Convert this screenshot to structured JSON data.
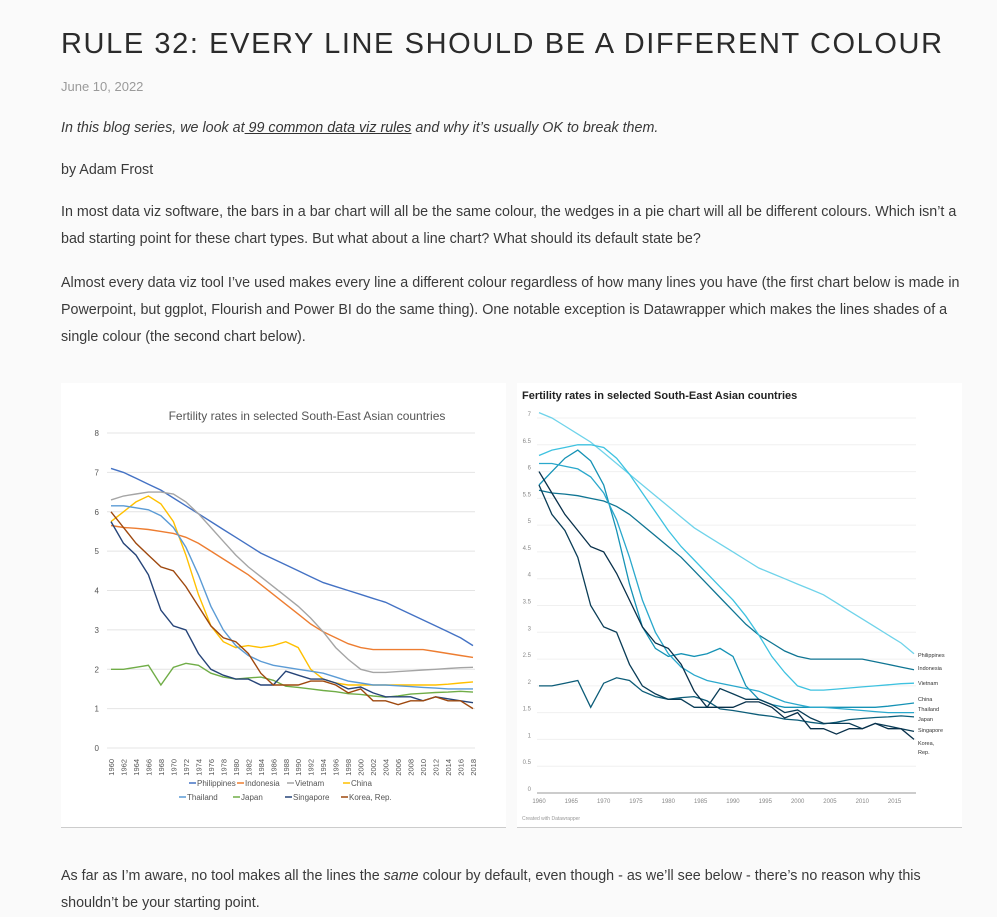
{
  "post": {
    "title": "RULE 32: EVERY LINE SHOULD BE A DIFFERENT COLOUR",
    "date": "June 10, 2022",
    "intro_before": "In this blog series, we look at",
    "intro_link": " 99 common data viz rules",
    "intro_after": " and why it’s usually OK to break them.",
    "byline": "by Adam Frost",
    "paragraph1": "In most data viz software, the bars in a bar chart will all be the same colour, the wedges in a pie chart will all be different colours. Which isn’t a bad starting point for these chart types. But what about a line chart? What should its default state be?",
    "paragraph2": "Almost every data viz tool I’ve used makes every line a different colour regardless of how many lines you have (the first chart below is made in Powerpoint, but ggplot, Flourish and Power BI do the same thing). One notable exception is Datawrapper which makes the lines shades of a single colour (the second chart below).",
    "paragraph3_before": "As far as I’m aware, no tool makes all the lines the ",
    "paragraph3_em": "same",
    "paragraph3_after": " colour by default, even though - as we’ll see below - there’s no reason why this shouldn’t be your starting point."
  },
  "chart_data": [
    {
      "type": "line",
      "title": "Fertility rates in selected South-East Asian countries",
      "xlabel": "",
      "ylabel": "",
      "ylim": [
        0,
        8
      ],
      "yticks": [
        0,
        1,
        2,
        3,
        4,
        5,
        6,
        7,
        8
      ],
      "x": [
        1960,
        1962,
        1964,
        1966,
        1968,
        1970,
        1972,
        1974,
        1976,
        1978,
        1980,
        1982,
        1984,
        1986,
        1988,
        1990,
        1992,
        1994,
        1996,
        1998,
        2000,
        2002,
        2004,
        2006,
        2008,
        2010,
        2012,
        2014,
        2016,
        2018
      ],
      "legend": [
        "Philippines",
        "Indonesia",
        "Vietnam",
        "China",
        "Thailand",
        "Japan",
        "Singapore",
        "Korea, Rep."
      ],
      "series": [
        {
          "name": "Philippines",
          "color": "#4472C4",
          "values": [
            7.1,
            7.0,
            6.85,
            6.7,
            6.55,
            6.35,
            6.15,
            5.95,
            5.75,
            5.55,
            5.35,
            5.15,
            4.95,
            4.8,
            4.65,
            4.5,
            4.35,
            4.2,
            4.1,
            4.0,
            3.9,
            3.8,
            3.7,
            3.55,
            3.4,
            3.25,
            3.1,
            2.95,
            2.8,
            2.6
          ]
        },
        {
          "name": "Indonesia",
          "color": "#ED7D31",
          "values": [
            5.65,
            5.6,
            5.58,
            5.55,
            5.5,
            5.45,
            5.35,
            5.2,
            5.0,
            4.8,
            4.6,
            4.4,
            4.15,
            3.9,
            3.65,
            3.4,
            3.15,
            2.95,
            2.8,
            2.65,
            2.55,
            2.5,
            2.5,
            2.5,
            2.5,
            2.5,
            2.45,
            2.4,
            2.35,
            2.3
          ]
        },
        {
          "name": "Vietnam",
          "color": "#A5A5A5",
          "values": [
            6.3,
            6.4,
            6.45,
            6.5,
            6.5,
            6.45,
            6.25,
            5.95,
            5.6,
            5.25,
            4.9,
            4.6,
            4.35,
            4.1,
            3.85,
            3.6,
            3.3,
            2.95,
            2.55,
            2.25,
            2.0,
            1.92,
            1.92,
            1.94,
            1.96,
            1.98,
            2.0,
            2.02,
            2.04,
            2.05
          ]
        },
        {
          "name": "China",
          "color": "#FFC000",
          "values": [
            5.75,
            6.0,
            6.25,
            6.4,
            6.2,
            5.75,
            4.9,
            3.9,
            3.1,
            2.7,
            2.55,
            2.6,
            2.55,
            2.6,
            2.7,
            2.55,
            2.0,
            1.75,
            1.65,
            1.6,
            1.6,
            1.6,
            1.6,
            1.6,
            1.6,
            1.6,
            1.6,
            1.62,
            1.65,
            1.68
          ]
        },
        {
          "name": "Thailand",
          "color": "#5B9BD5",
          "values": [
            6.15,
            6.15,
            6.1,
            6.05,
            5.9,
            5.6,
            5.1,
            4.4,
            3.6,
            3.0,
            2.6,
            2.35,
            2.2,
            2.1,
            2.05,
            2.0,
            1.95,
            1.9,
            1.8,
            1.7,
            1.65,
            1.6,
            1.6,
            1.58,
            1.56,
            1.54,
            1.52,
            1.5,
            1.5,
            1.5
          ]
        },
        {
          "name": "Japan",
          "color": "#70AD47",
          "values": [
            2.0,
            2.0,
            2.05,
            2.1,
            1.6,
            2.05,
            2.15,
            2.1,
            1.9,
            1.8,
            1.75,
            1.78,
            1.8,
            1.72,
            1.57,
            1.54,
            1.5,
            1.46,
            1.43,
            1.38,
            1.36,
            1.32,
            1.29,
            1.32,
            1.37,
            1.39,
            1.41,
            1.42,
            1.44,
            1.42
          ]
        },
        {
          "name": "Singapore",
          "color": "#264478",
          "values": [
            5.75,
            5.2,
            4.9,
            4.4,
            3.5,
            3.1,
            3.0,
            2.4,
            2.0,
            1.85,
            1.75,
            1.75,
            1.6,
            1.6,
            1.95,
            1.85,
            1.75,
            1.75,
            1.65,
            1.5,
            1.55,
            1.4,
            1.3,
            1.3,
            1.3,
            1.2,
            1.3,
            1.25,
            1.2,
            1.15
          ]
        },
        {
          "name": "Korea, Rep.",
          "color": "#9E480E",
          "values": [
            6.0,
            5.6,
            5.2,
            4.9,
            4.6,
            4.5,
            4.1,
            3.6,
            3.1,
            2.8,
            2.7,
            2.4,
            1.9,
            1.6,
            1.6,
            1.6,
            1.7,
            1.7,
            1.6,
            1.4,
            1.5,
            1.2,
            1.2,
            1.1,
            1.2,
            1.2,
            1.3,
            1.2,
            1.2,
            1.0
          ]
        }
      ]
    },
    {
      "type": "line",
      "title": "Fertility rates in selected South-East Asian countries",
      "footer": "Created with Datawrapper",
      "ylim": [
        0,
        7
      ],
      "yticks": [
        "0",
        "0.5",
        "1",
        "1.5",
        "2",
        "2.5",
        "3",
        "3.5",
        "4",
        "4.5",
        "5",
        "5.5",
        "6",
        "6.5",
        "7"
      ],
      "x": [
        1960,
        1962,
        1964,
        1966,
        1968,
        1970,
        1972,
        1974,
        1976,
        1978,
        1980,
        1982,
        1984,
        1986,
        1988,
        1990,
        1992,
        1994,
        1996,
        1998,
        2000,
        2002,
        2004,
        2006,
        2008,
        2010,
        2012,
        2014,
        2016,
        2018
      ],
      "xticks": [
        1960,
        1965,
        1970,
        1975,
        1980,
        1985,
        1990,
        1995,
        2000,
        2005,
        2010,
        2015
      ],
      "series": [
        {
          "name": "Philippines",
          "color": "#6fd3ea",
          "values": [
            7.1,
            7.0,
            6.85,
            6.7,
            6.55,
            6.35,
            6.15,
            5.95,
            5.75,
            5.55,
            5.35,
            5.15,
            4.95,
            4.8,
            4.65,
            4.5,
            4.35,
            4.2,
            4.1,
            4.0,
            3.9,
            3.8,
            3.7,
            3.55,
            3.4,
            3.25,
            3.1,
            2.95,
            2.8,
            2.6
          ]
        },
        {
          "name": "Indonesia",
          "color": "#0f7593",
          "values": [
            5.65,
            5.6,
            5.58,
            5.55,
            5.5,
            5.45,
            5.35,
            5.2,
            5.0,
            4.8,
            4.6,
            4.4,
            4.15,
            3.9,
            3.65,
            3.4,
            3.15,
            2.95,
            2.8,
            2.65,
            2.55,
            2.5,
            2.5,
            2.5,
            2.5,
            2.5,
            2.45,
            2.4,
            2.35,
            2.3
          ]
        },
        {
          "name": "Vietnam",
          "color": "#3ec2e0",
          "values": [
            6.3,
            6.4,
            6.45,
            6.5,
            6.5,
            6.45,
            6.25,
            5.95,
            5.6,
            5.25,
            4.9,
            4.6,
            4.35,
            4.1,
            3.85,
            3.6,
            3.3,
            2.95,
            2.55,
            2.25,
            2.0,
            1.92,
            1.92,
            1.94,
            1.96,
            1.98,
            2.0,
            2.02,
            2.04,
            2.05
          ]
        },
        {
          "name": "China",
          "color": "#1592b5",
          "values": [
            5.75,
            6.0,
            6.25,
            6.4,
            6.2,
            5.75,
            4.9,
            3.9,
            3.1,
            2.7,
            2.55,
            2.6,
            2.55,
            2.6,
            2.7,
            2.55,
            2.0,
            1.75,
            1.65,
            1.6,
            1.6,
            1.6,
            1.6,
            1.6,
            1.6,
            1.6,
            1.6,
            1.62,
            1.65,
            1.68
          ]
        },
        {
          "name": "Thailand",
          "color": "#2aa8cc",
          "values": [
            6.15,
            6.15,
            6.1,
            6.05,
            5.9,
            5.6,
            5.1,
            4.4,
            3.6,
            3.0,
            2.6,
            2.35,
            2.2,
            2.1,
            2.05,
            2.0,
            1.95,
            1.9,
            1.8,
            1.7,
            1.65,
            1.6,
            1.6,
            1.58,
            1.56,
            1.54,
            1.52,
            1.5,
            1.5,
            1.5
          ]
        },
        {
          "name": "Japan",
          "color": "#0c5c78",
          "values": [
            2.0,
            2.0,
            2.05,
            2.1,
            1.6,
            2.05,
            2.15,
            2.1,
            1.9,
            1.8,
            1.75,
            1.78,
            1.8,
            1.72,
            1.57,
            1.54,
            1.5,
            1.46,
            1.43,
            1.38,
            1.36,
            1.32,
            1.29,
            1.32,
            1.37,
            1.39,
            1.41,
            1.42,
            1.44,
            1.42
          ]
        },
        {
          "name": "Singapore",
          "color": "#0a3d57",
          "values": [
            5.75,
            5.2,
            4.9,
            4.4,
            3.5,
            3.1,
            3.0,
            2.4,
            2.0,
            1.85,
            1.75,
            1.75,
            1.6,
            1.6,
            1.95,
            1.85,
            1.75,
            1.75,
            1.65,
            1.5,
            1.55,
            1.4,
            1.3,
            1.3,
            1.3,
            1.2,
            1.3,
            1.25,
            1.2,
            1.15
          ]
        },
        {
          "name": "Korea, Rep.",
          "color": "#08304a",
          "values": [
            6.0,
            5.6,
            5.2,
            4.9,
            4.6,
            4.5,
            4.1,
            3.6,
            3.1,
            2.8,
            2.7,
            2.4,
            1.9,
            1.6,
            1.6,
            1.6,
            1.7,
            1.7,
            1.6,
            1.4,
            1.5,
            1.2,
            1.2,
            1.1,
            1.2,
            1.2,
            1.3,
            1.2,
            1.2,
            1.0
          ]
        }
      ],
      "labels": [
        "Philippines",
        "Indonesia",
        "Vietnam",
        "China",
        "Thailand",
        "Japan",
        "Singapore",
        "Korea,",
        "Rep."
      ]
    }
  ]
}
